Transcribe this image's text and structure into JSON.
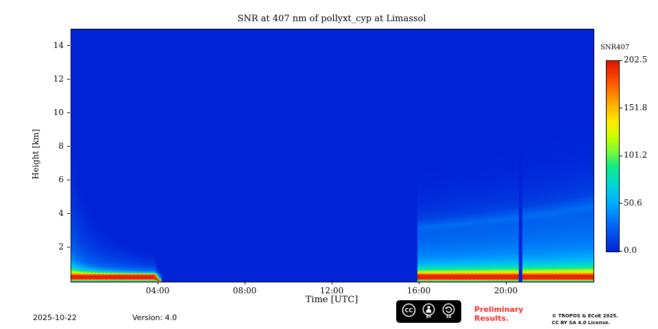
{
  "title": "SNR at 407 nm of pollyxt_cyp at Limassol",
  "footer": {
    "date": "2025-10-22",
    "version": "Version: 4.0",
    "preliminary_line1": "Preliminary",
    "preliminary_line2": "Results.",
    "copyright_line1": "© TROPOS & ECoE 2025.",
    "copyright_line2": "CC BY SA 4.0 License.",
    "badge": {
      "cc_label": "CC",
      "by_label": "BY",
      "sa_label": "SA"
    }
  },
  "chart_data": {
    "type": "heatmap",
    "title": "SNR at 407 nm of pollyxt_cyp at Limassol",
    "xlabel": "Time [UTC]",
    "ylabel": "Height [km]",
    "colorbar_label": "SNR407",
    "x_range_hours": [
      0,
      24
    ],
    "y_range_km": [
      0,
      15
    ],
    "value_range": [
      0,
      202.5
    ],
    "x_ticks": [
      {
        "value": 4,
        "label": "04:00"
      },
      {
        "value": 8,
        "label": "08:00"
      },
      {
        "value": 12,
        "label": "12:00"
      },
      {
        "value": 16,
        "label": "16:00"
      },
      {
        "value": 20,
        "label": "20:00"
      }
    ],
    "y_ticks": [
      {
        "value": 2,
        "label": "2"
      },
      {
        "value": 4,
        "label": "4"
      },
      {
        "value": 6,
        "label": "6"
      },
      {
        "value": 8,
        "label": "8"
      },
      {
        "value": 10,
        "label": "10"
      },
      {
        "value": 12,
        "label": "12"
      },
      {
        "value": 14,
        "label": "14"
      }
    ],
    "colorbar_ticks": [
      {
        "value": 202.5,
        "label": "202.5"
      },
      {
        "value": 151.8,
        "label": "151.8"
      },
      {
        "value": 101.2,
        "label": "101.2"
      },
      {
        "value": 50.6,
        "label": "50.6"
      },
      {
        "value": 0.0,
        "label": "0.0"
      }
    ],
    "colormap": [
      [
        0.0,
        [
          0,
          35,
          215
        ]
      ],
      [
        0.15,
        [
          0,
          110,
          245
        ]
      ],
      [
        0.25,
        [
          0,
          170,
          255
        ]
      ],
      [
        0.35,
        [
          0,
          215,
          215
        ]
      ],
      [
        0.45,
        [
          20,
          235,
          130
        ]
      ],
      [
        0.52,
        [
          120,
          250,
          60
        ]
      ],
      [
        0.6,
        [
          200,
          255,
          0
        ]
      ],
      [
        0.68,
        [
          255,
          235,
          0
        ]
      ],
      [
        0.78,
        [
          255,
          170,
          0
        ]
      ],
      [
        0.88,
        [
          255,
          90,
          0
        ]
      ],
      [
        1.0,
        [
          225,
          20,
          0
        ]
      ]
    ],
    "noise_amp": 0.1,
    "segments": [
      {
        "name": "morning-measurement",
        "t_start": 0.0,
        "t_end": 4.17,
        "fixed_height": 0.45,
        "compress_start": 1.0,
        "compress_end": 7.0,
        "end_taper": 0.35,
        "profile": [
          [
            0.0,
            30
          ],
          [
            0.08,
            120
          ],
          [
            0.15,
            195
          ],
          [
            0.2,
            202
          ],
          [
            0.34,
            202
          ],
          [
            0.45,
            165
          ],
          [
            0.6,
            115
          ],
          [
            0.8,
            78
          ],
          [
            1.05,
            55
          ],
          [
            1.4,
            40
          ],
          [
            1.9,
            27
          ],
          [
            2.6,
            20
          ],
          [
            3.5,
            14
          ],
          [
            4.6,
            9
          ],
          [
            6.0,
            5
          ],
          [
            7.5,
            2
          ],
          [
            9.0,
            0
          ]
        ]
      },
      {
        "name": "evening-measurement",
        "t_start": 15.92,
        "t_end": 24.0,
        "fixed_height": 0.45,
        "compress_start": 1.4,
        "compress_end": 0.95,
        "end_taper": 0,
        "profile": [
          [
            0.0,
            35
          ],
          [
            0.08,
            130
          ],
          [
            0.15,
            200
          ],
          [
            0.38,
            200
          ],
          [
            0.5,
            155
          ],
          [
            0.65,
            115
          ],
          [
            0.85,
            85
          ],
          [
            1.1,
            65
          ],
          [
            1.45,
            50
          ],
          [
            1.9,
            40
          ],
          [
            2.5,
            33
          ],
          [
            3.2,
            28
          ],
          [
            3.9,
            25
          ],
          [
            4.3,
            30
          ],
          [
            4.6,
            22
          ],
          [
            5.0,
            13
          ],
          [
            5.6,
            8
          ],
          [
            6.5,
            4
          ],
          [
            7.5,
            1.5
          ],
          [
            9.0,
            0
          ]
        ]
      }
    ],
    "gaps": [
      {
        "t_start": 20.58,
        "t_end": 20.72
      }
    ]
  }
}
